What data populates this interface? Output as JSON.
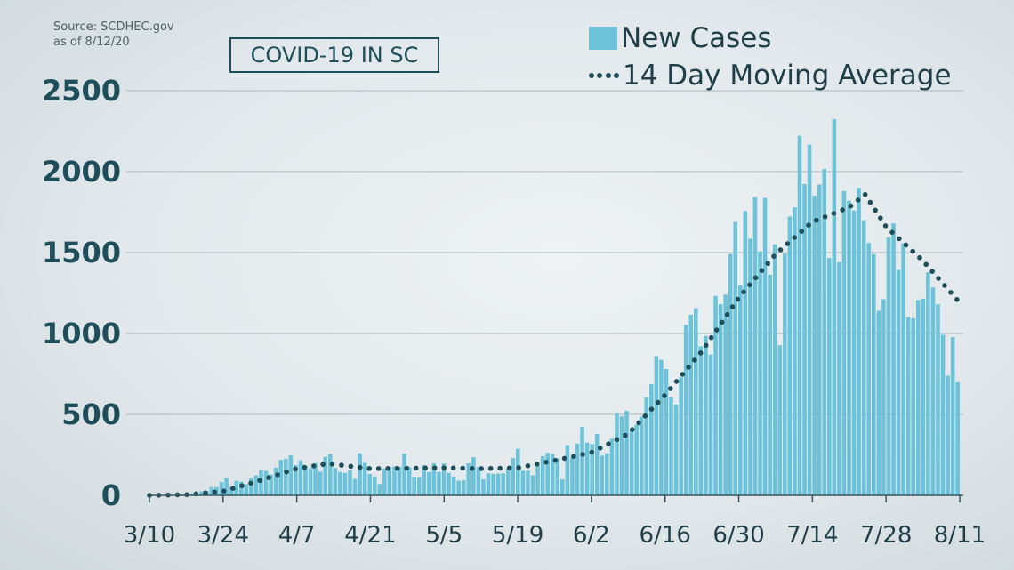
{
  "source_line1": "Source: SCDHEC.gov",
  "source_line2": "as of 8/12/20",
  "chart_data": {
    "type": "bar",
    "title": "COVID-19 IN SC",
    "x_tick_labels": [
      "3/10",
      "3/24",
      "4/7",
      "4/21",
      "5/5",
      "5/19",
      "6/2",
      "6/16",
      "6/30",
      "7/14",
      "7/28",
      "8/11"
    ],
    "y_ticks": [
      0,
      500,
      1000,
      1500,
      2000,
      2500
    ],
    "ylim": [
      0,
      2500
    ],
    "x_range": [
      "3/10",
      "8/11"
    ],
    "grid": "horizontal",
    "legend_position": "top-right",
    "series": [
      {
        "name": "New Cases",
        "type": "bar",
        "color": "#6cc3d9",
        "values": [
          0,
          0,
          1,
          2,
          4,
          8,
          5,
          14,
          12,
          14,
          25,
          28,
          52,
          50,
          83,
          109,
          51,
          90,
          84,
          69,
          106,
          123,
          158,
          151,
          128,
          171,
          219,
          226,
          248,
          186,
          216,
          184,
          168,
          199,
          146,
          238,
          256,
          169,
          145,
          139,
          155,
          102,
          260,
          201,
          132,
          116,
          70,
          166,
          175,
          179,
          176,
          258,
          174,
          115,
          113,
          186,
          144,
          198,
          144,
          197,
          138,
          117,
          90,
          93,
          198,
          235,
          175,
          98,
          136,
          133,
          134,
          136,
          166,
          230,
          287,
          152,
          153,
          124,
          184,
          242,
          263,
          256,
          229,
          98,
          310,
          235,
          319,
          423,
          326,
          317,
          380,
          245,
          260,
          350,
          512,
          488,
          522,
          400,
          436,
          486,
          605,
          687,
          860,
          837,
          780,
          607,
          560,
          729,
          1054,
          1116,
          1156,
          921,
          985,
          869,
          1232,
          1181,
          1240,
          1491,
          1690,
          1299,
          1757,
          1586,
          1843,
          1507,
          1837,
          1363,
          1551,
          927,
          1494,
          1723,
          1779,
          2222,
          1923,
          2167,
          1852,
          1921,
          2017,
          1466,
          2324,
          1440,
          1880,
          1820,
          1760,
          1900,
          1700,
          1560,
          1490,
          1140,
          1212,
          1594,
          1681,
          1393,
          1557,
          1101,
          1093,
          1207,
          1215,
          1378,
          1285,
          1181,
          992,
          738,
          978,
          698
        ]
      },
      {
        "name": "14 Day Moving Average",
        "type": "line",
        "style": "dotted",
        "color": "#1f4e5b",
        "points": [
          {
            "x": "3/10",
            "y": 0
          },
          {
            "x": "3/17",
            "y": 4
          },
          {
            "x": "3/24",
            "y": 25
          },
          {
            "x": "3/31",
            "y": 92
          },
          {
            "x": "4/7",
            "y": 165
          },
          {
            "x": "4/13",
            "y": 196
          },
          {
            "x": "4/21",
            "y": 165
          },
          {
            "x": "5/5",
            "y": 170
          },
          {
            "x": "5/12",
            "y": 165
          },
          {
            "x": "5/19",
            "y": 170
          },
          {
            "x": "5/26",
            "y": 215
          },
          {
            "x": "6/2",
            "y": 265
          },
          {
            "x": "6/9",
            "y": 380
          },
          {
            "x": "6/16",
            "y": 620
          },
          {
            "x": "6/23",
            "y": 890
          },
          {
            "x": "6/30",
            "y": 1220
          },
          {
            "x": "7/7",
            "y": 1490
          },
          {
            "x": "7/14",
            "y": 1690
          },
          {
            "x": "7/21",
            "y": 1780
          },
          {
            "x": "7/24",
            "y": 1860
          },
          {
            "x": "7/28",
            "y": 1660
          },
          {
            "x": "8/4",
            "y": 1450
          },
          {
            "x": "8/11",
            "y": 1190
          }
        ]
      }
    ]
  }
}
